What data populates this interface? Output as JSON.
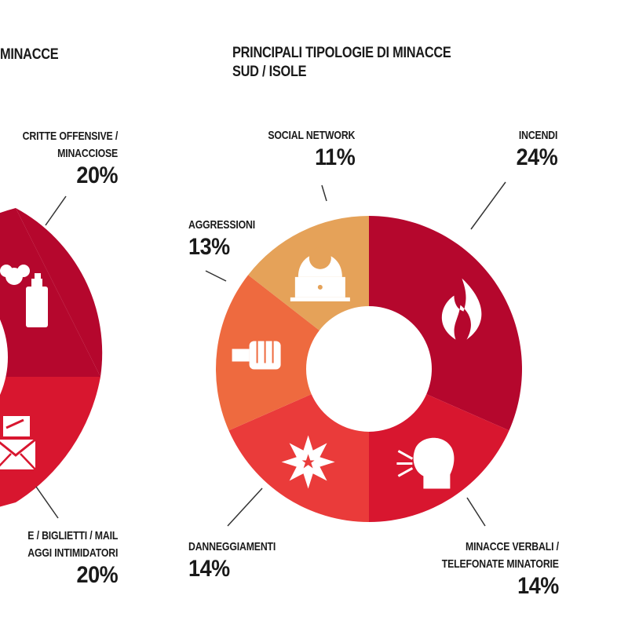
{
  "left_chart": {
    "title": "MINACCE",
    "labels": [
      {
        "line1": "CRITTE OFFENSIVE /",
        "line2": "MINACCIOSE",
        "pct": "20%"
      },
      {
        "line1": "E / BIGLIETTI / MAIL",
        "line2": "AGGI INTIMIDATORI",
        "pct": "20%"
      }
    ]
  },
  "chart_data": {
    "type": "pie",
    "title": "PRINCIPALI TIPOLOGIE DI MINACCE",
    "subtitle": "SUD / ISOLE",
    "categories": [
      "INCENDI",
      "MINACCE VERBALI / TELEFONATE MINATORIE",
      "DANNEGGIAMENTI",
      "AGGRESSIONI",
      "SOCIAL NETWORK"
    ],
    "values": [
      24,
      14,
      14,
      13,
      11
    ],
    "value_labels": [
      "24%",
      "14%",
      "14%",
      "13%",
      "11%"
    ],
    "colors": [
      "#b5072d",
      "#d8162f",
      "#ea3b3a",
      "#ee6a3f",
      "#e5a259"
    ],
    "icons": [
      "fire-icon",
      "shouting-head-icon",
      "explosion-icon",
      "fist-icon",
      "hacker-laptop-icon"
    ],
    "donut": true
  },
  "labels": {
    "incendi": {
      "line1": "INCENDI",
      "pct": "24%"
    },
    "verbali": {
      "line1": "MINACCE VERBALI /",
      "line2": "TELEFONATE MINATORIE",
      "pct": "14%"
    },
    "danneggiamenti": {
      "line1": "DANNEGGIAMENTI",
      "pct": "14%"
    },
    "aggressioni": {
      "line1": "AGGRESSIONI",
      "pct": "13%"
    },
    "social": {
      "line1": "SOCIAL NETWORK",
      "pct": "11%"
    }
  }
}
